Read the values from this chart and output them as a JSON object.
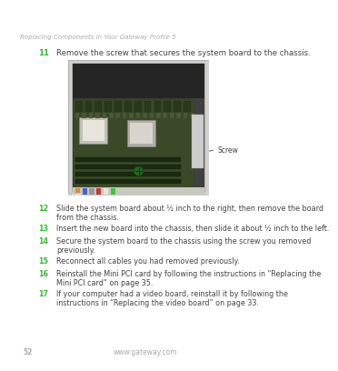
{
  "bg_color": "#ffffff",
  "header_italic": "Replacing Components in Your Gateway Profile 5",
  "header_color": "#aaaaaa",
  "header_fontsize": 5.0,
  "step11_num": "11",
  "step11_text": "Remove the screw that secures the system board to the chassis.",
  "step11_num_color": "#33bb33",
  "step11_text_color": "#444444",
  "step11_fontsize": 6.2,
  "steps": [
    {
      "num": "12",
      "text": "Slide the system board about ½ inch to the right, then remove the board\nfrom the chassis."
    },
    {
      "num": "13",
      "text": "Insert the new board into the chassis, then slide it about ½ inch to the left."
    },
    {
      "num": "14",
      "text": "Secure the system board to the chassis using the screw you removed\npreviously."
    },
    {
      "num": "15",
      "text": "Reconnect all cables you had removed previously."
    },
    {
      "num": "16",
      "text": "Reinstall the Mini PCI card by following the instructions in “Replacing the\nMini PCI card” on page 35."
    },
    {
      "num": "17",
      "text": "If your computer had a video board, reinstall it by following the\ninstructions in “Replacing the video board” on page 33."
    }
  ],
  "steps_fontsize": 5.8,
  "num_color": "#33bb33",
  "text_color": "#444444",
  "screw_label": "Screw",
  "footer_page": "52",
  "footer_url": "www.gateway.com",
  "footer_color": "#aaaaaa",
  "footer_fontsize": 5.5
}
